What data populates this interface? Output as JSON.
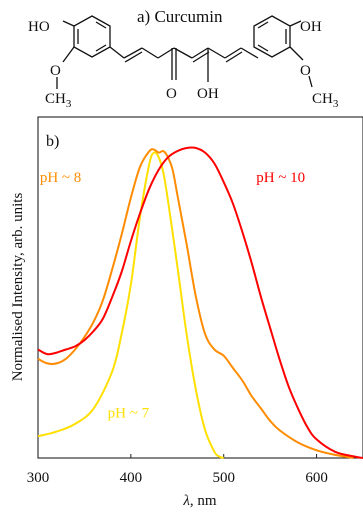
{
  "structure": {
    "label": "a) Curcumin",
    "substituents": {
      "left_oh": "HO",
      "left_och3_o": "O",
      "left_ch3": "CH",
      "left_ch3_sub": "3",
      "center_ketone": "O",
      "center_enol": "OH",
      "right_oh": "OH",
      "right_och3_o": "O",
      "right_ch3": "CH",
      "right_ch3_sub": "3"
    }
  },
  "chart_data": {
    "type": "line",
    "panel_label": "b)",
    "xlabel_symbol": "λ",
    "xlabel_unit": ", nm",
    "ylabel": "Normalised Intensity, arb. units",
    "xlim": [
      300,
      650
    ],
    "ylim": [
      0,
      1.0
    ],
    "xticks": [
      300,
      400,
      500,
      600
    ],
    "yticks_shown": false,
    "grid": false,
    "series": [
      {
        "name": "pH ~ 7",
        "color": "#ffe000",
        "x": [
          300,
          320,
          340,
          360,
          380,
          390,
          400,
          410,
          420,
          425,
          430,
          435,
          440,
          450,
          460,
          470,
          480,
          490,
          495,
          500
        ],
        "y": [
          0.07,
          0.085,
          0.11,
          0.16,
          0.28,
          0.4,
          0.56,
          0.78,
          0.95,
          0.985,
          0.97,
          0.92,
          0.83,
          0.62,
          0.4,
          0.22,
          0.09,
          0.02,
          0.005,
          0.0
        ]
      },
      {
        "name": "pH ~ 8",
        "color": "#ff8c00",
        "x": [
          300,
          310,
          320,
          330,
          340,
          350,
          360,
          370,
          380,
          390,
          400,
          410,
          420,
          425,
          430,
          435,
          440,
          445,
          450,
          460,
          470,
          480,
          490,
          500,
          510,
          520,
          530,
          540,
          550,
          560,
          580,
          600,
          620,
          640
        ],
        "y": [
          0.32,
          0.305,
          0.305,
          0.32,
          0.35,
          0.39,
          0.44,
          0.51,
          0.61,
          0.72,
          0.84,
          0.94,
          0.99,
          0.995,
          0.985,
          0.99,
          0.97,
          0.93,
          0.85,
          0.69,
          0.52,
          0.4,
          0.35,
          0.33,
          0.29,
          0.25,
          0.2,
          0.16,
          0.12,
          0.09,
          0.05,
          0.025,
          0.01,
          0.0
        ]
      },
      {
        "name": "pH ~ 10",
        "color": "#ff0000",
        "x": [
          300,
          310,
          320,
          330,
          340,
          350,
          360,
          370,
          380,
          390,
          400,
          410,
          420,
          430,
          440,
          450,
          460,
          470,
          480,
          490,
          500,
          510,
          520,
          530,
          540,
          550,
          560,
          570,
          580,
          590,
          600,
          620,
          640,
          650
        ],
        "y": [
          0.35,
          0.335,
          0.34,
          0.35,
          0.36,
          0.38,
          0.41,
          0.45,
          0.52,
          0.6,
          0.7,
          0.79,
          0.87,
          0.93,
          0.97,
          0.99,
          1.0,
          1.0,
          0.985,
          0.95,
          0.89,
          0.82,
          0.73,
          0.63,
          0.52,
          0.42,
          0.32,
          0.23,
          0.16,
          0.1,
          0.06,
          0.02,
          0.005,
          0.0
        ]
      }
    ],
    "annotations": [
      {
        "text": "pH ~ 8",
        "color": "#ff8c00",
        "x": 302,
        "y": 0.89
      },
      {
        "text": "pH ~ 10",
        "color": "#ff0000",
        "x": 535,
        "y": 0.89
      },
      {
        "text": "pH ~ 7",
        "color": "#ffe000",
        "x": 375,
        "y": 0.13
      }
    ]
  }
}
